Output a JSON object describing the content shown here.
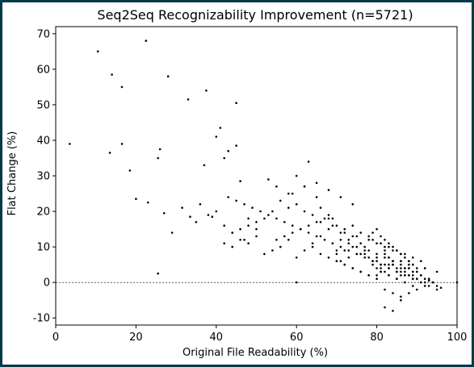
{
  "chart_data": {
    "type": "scatter",
    "title": "Seq2Seq Recognizability Improvement (n=5721)",
    "xlabel": "Original File Readability (%)",
    "ylabel": "Flat Change (%)",
    "xlim": [
      0,
      100
    ],
    "ylim": [
      -12,
      72
    ],
    "xticks": [
      "0",
      "20",
      "40",
      "60",
      "80",
      "100"
    ],
    "yticks": [
      "-10",
      "0",
      "10",
      "20",
      "30",
      "40",
      "50",
      "60",
      "70"
    ],
    "grid": false,
    "reference_line": {
      "y": 0,
      "style": "dashed"
    },
    "marker_color": "#000000",
    "series": [
      {
        "x": [
          3.5,
          10.5,
          14,
          16.5,
          22.5,
          28,
          33,
          37.5,
          45,
          16.5,
          13.5,
          18.5,
          20,
          23,
          25.5,
          26,
          27,
          29,
          31.5,
          33.5,
          35,
          36,
          37,
          38,
          39,
          40,
          41,
          42,
          43,
          44,
          45,
          46,
          47,
          48,
          25.5,
          42,
          50,
          53,
          55,
          58,
          60,
          62,
          63,
          65,
          66,
          68,
          69,
          70,
          71,
          72,
          73,
          74,
          75,
          76,
          77,
          78,
          79,
          80,
          81,
          82,
          83,
          84,
          85,
          86,
          87,
          88,
          89,
          90,
          91,
          92,
          93,
          94,
          95,
          96,
          100,
          60,
          64,
          66,
          68,
          70,
          72,
          74,
          76,
          78,
          80,
          81,
          82,
          83,
          84,
          85,
          86,
          87,
          88,
          89,
          90,
          91,
          92,
          88,
          86,
          84,
          82,
          80,
          79,
          78,
          77,
          76,
          75,
          74,
          73,
          72,
          71,
          70,
          81,
          83,
          85,
          87,
          89,
          82,
          84,
          86,
          88,
          90,
          92,
          94,
          80,
          82,
          84,
          86,
          88,
          81,
          83,
          85,
          87,
          89,
          91,
          79,
          80,
          81,
          82,
          83,
          84,
          85,
          86,
          87,
          88,
          89,
          90,
          78,
          76,
          74,
          72,
          70,
          68,
          66,
          64,
          62,
          60,
          58,
          56,
          54,
          52,
          50,
          48,
          46,
          44,
          42,
          40,
          55,
          57,
          59,
          61,
          63,
          65,
          67,
          69,
          71,
          73,
          75,
          77,
          79,
          81,
          83,
          85,
          87,
          89,
          91,
          93,
          95,
          82,
          84,
          86,
          80,
          78,
          76,
          74,
          72,
          70,
          83,
          85,
          87,
          89,
          86,
          88,
          90,
          84,
          82,
          80,
          78,
          60,
          62,
          64,
          66,
          68,
          56,
          58,
          52,
          54,
          48,
          50,
          44,
          46,
          79,
          77,
          75,
          73,
          71,
          69,
          67,
          65,
          63,
          61,
          59,
          57,
          55,
          53,
          51,
          49,
          47,
          45,
          43,
          81,
          83,
          85,
          87,
          89,
          91,
          93,
          82,
          84,
          86,
          88,
          90,
          92,
          80,
          83,
          86,
          89,
          92,
          95,
          74,
          71,
          68,
          65,
          62,
          59
        ],
        "y": [
          39,
          65,
          58.5,
          55,
          68,
          58,
          51.5,
          54,
          50.5,
          39,
          36.5,
          31.5,
          23.5,
          22.5,
          35,
          37.5,
          19.5,
          14,
          21,
          18.5,
          17,
          22,
          33,
          19,
          18.5,
          41,
          43.5,
          35,
          37,
          14,
          38.5,
          28.5,
          12,
          18,
          2.5,
          11,
          15,
          29,
          27,
          25,
          30,
          27,
          34,
          24,
          21,
          19,
          18,
          9,
          12,
          14,
          11,
          16,
          13,
          8,
          10,
          7,
          5,
          6,
          4,
          9,
          7,
          5,
          3,
          6,
          4,
          2,
          3,
          1,
          2,
          1,
          0.5,
          0,
          -1,
          -1.5,
          0,
          0,
          10,
          8,
          7,
          6,
          5,
          4,
          3,
          2,
          7,
          5,
          8,
          4,
          6,
          3,
          5,
          2,
          4,
          1,
          3,
          2,
          0,
          6,
          8,
          9,
          10,
          11,
          12,
          13,
          9,
          11,
          8,
          10,
          7,
          9,
          6,
          8,
          3,
          2,
          1,
          0,
          -1,
          -2,
          -3,
          -4,
          -3,
          -2,
          -1,
          0,
          4,
          3,
          5,
          2,
          4,
          11,
          10,
          9,
          8,
          7,
          6,
          14,
          15,
          13,
          12,
          11,
          10,
          9,
          8,
          7,
          6,
          5,
          4,
          12,
          14,
          13,
          15,
          16,
          18,
          17,
          19,
          20,
          22,
          21,
          23,
          20,
          18,
          17,
          16,
          15,
          14,
          16,
          20,
          12,
          13,
          14,
          15,
          16,
          17,
          18,
          16,
          14,
          12,
          10,
          8,
          6,
          5,
          4,
          3,
          2,
          1,
          0,
          -1,
          -2,
          -7,
          -8,
          -5,
          1,
          2,
          3,
          4,
          5,
          6,
          5,
          4,
          3,
          2,
          3,
          2,
          1,
          6,
          7,
          8,
          9,
          7,
          9,
          11,
          13,
          15,
          10,
          12,
          8,
          9,
          11,
          13,
          10,
          12,
          6,
          7,
          8,
          9,
          10,
          11,
          12,
          13,
          14,
          15,
          16,
          17,
          18,
          19,
          20,
          21,
          22,
          23,
          24,
          3,
          2,
          1,
          4,
          3,
          2,
          1,
          5,
          6,
          4,
          5,
          3,
          4,
          2,
          7,
          6,
          5,
          4,
          3,
          22,
          24,
          26,
          28,
          27,
          25
        ]
      }
    ]
  }
}
